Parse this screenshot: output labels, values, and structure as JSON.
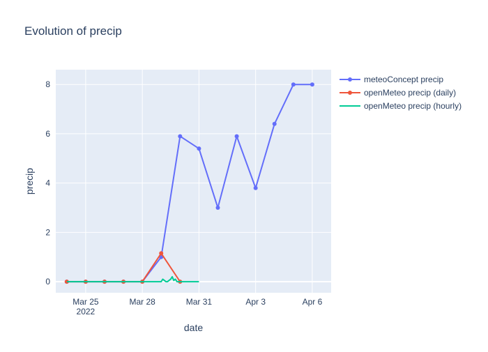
{
  "chart_data": {
    "type": "line",
    "title": "Evolution of precip",
    "xlabel": "date",
    "ylabel": "precip",
    "x_range": [
      "2022-03-23T10:00",
      "2022-04-07T00:00"
    ],
    "ylim": [
      -0.45,
      8.6
    ],
    "y_ticks": [
      0,
      2,
      4,
      6,
      8
    ],
    "x_ticks": [
      {
        "date": "2022-03-25",
        "label": "Mar 25",
        "sublabel": "2022"
      },
      {
        "date": "2022-03-28",
        "label": "Mar 28"
      },
      {
        "date": "2022-03-31",
        "label": "Mar 31"
      },
      {
        "date": "2022-04-03",
        "label": "Apr 3"
      },
      {
        "date": "2022-04-06",
        "label": "Apr 6"
      }
    ],
    "grid": true,
    "legend_position": "top-right",
    "series": [
      {
        "name": "meteoConcept precip",
        "color": "#636efa",
        "mode": "lines+markers",
        "x": [
          "2022-03-24",
          "2022-03-25",
          "2022-03-26",
          "2022-03-27",
          "2022-03-28",
          "2022-03-29",
          "2022-03-30",
          "2022-03-31",
          "2022-04-01",
          "2022-04-02",
          "2022-04-03",
          "2022-04-04",
          "2022-04-05",
          "2022-04-06"
        ],
        "y": [
          0,
          0,
          0,
          0,
          0,
          1.0,
          5.9,
          5.4,
          3.0,
          5.9,
          3.8,
          6.4,
          8.0,
          8.0
        ]
      },
      {
        "name": "openMeteo precip (daily)",
        "color": "#ef553b",
        "mode": "lines+markers",
        "x": [
          "2022-03-24",
          "2022-03-25",
          "2022-03-26",
          "2022-03-27",
          "2022-03-28",
          "2022-03-29",
          "2022-03-30"
        ],
        "y": [
          0,
          0,
          0,
          0,
          0,
          1.15,
          0
        ]
      },
      {
        "name": "openMeteo precip (hourly)",
        "color": "#00cc96",
        "mode": "lines",
        "x": [
          "2022-03-24T00:00",
          "2022-03-29T00:00",
          "2022-03-29T02:00",
          "2022-03-29T04:00",
          "2022-03-29T06:00",
          "2022-03-29T08:00",
          "2022-03-29T10:00",
          "2022-03-29T12:00",
          "2022-03-29T14:00",
          "2022-03-29T16:00",
          "2022-03-29T18:00",
          "2022-03-29T20:00",
          "2022-03-29T22:00",
          "2022-03-30T00:00",
          "2022-03-31T00:00"
        ],
        "y": [
          0,
          0,
          0.1,
          0.05,
          0,
          0,
          0.05,
          0.1,
          0.2,
          0.05,
          0.1,
          0,
          0,
          0,
          0
        ]
      }
    ]
  }
}
